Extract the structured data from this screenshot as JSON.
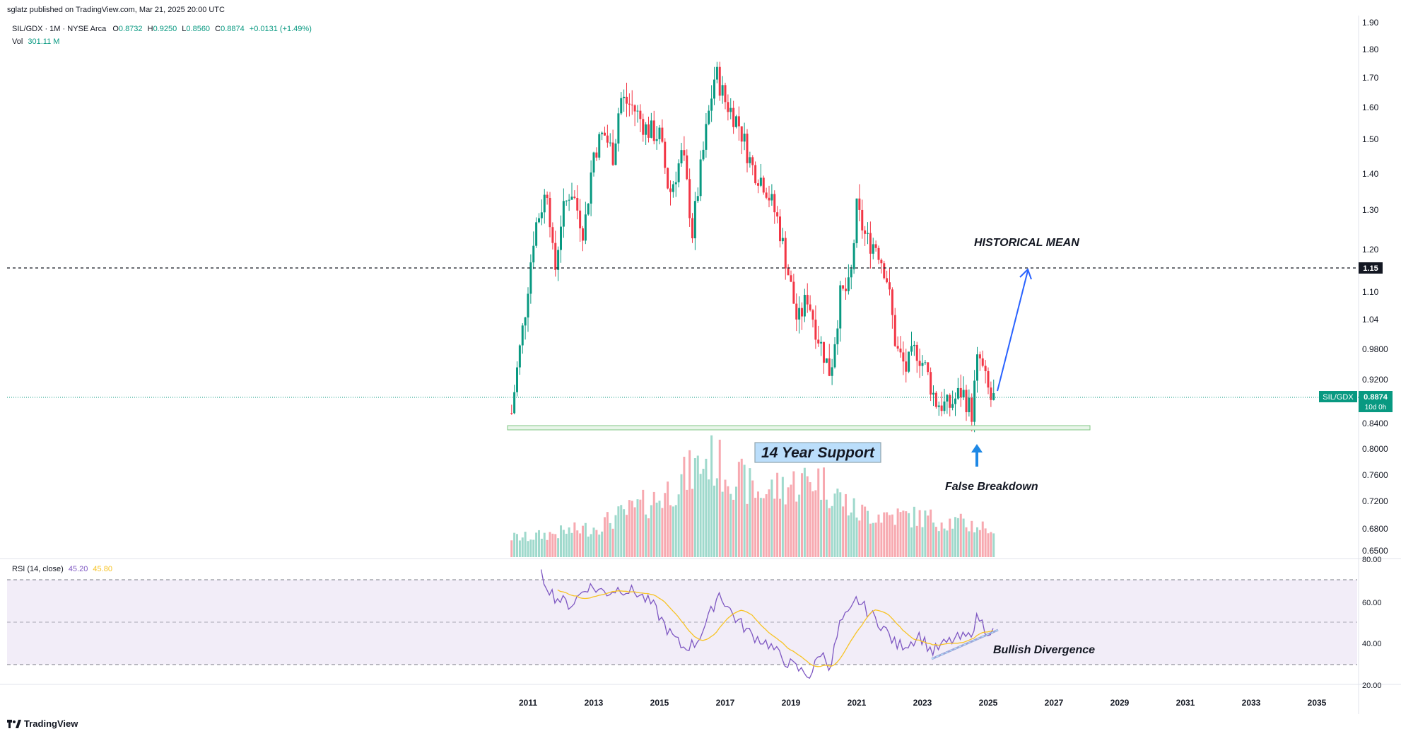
{
  "header": {
    "published": "sglatz published on TradingView.com, Mar 21, 2025 20:00 UTC"
  },
  "legend": {
    "symbol": "SIL/GDX · 1M · NYSE Arca",
    "o_label": "O",
    "o": "0.8732",
    "h_label": "H",
    "h": "0.9250",
    "l_label": "L",
    "l": "0.8560",
    "c_label": "C",
    "c": "0.8874",
    "change": "+0.0131 (+1.49%)",
    "vol_label": "Vol",
    "vol": "301.11 M",
    "rsi_label": "RSI (14, close)",
    "rsi_value": "45.20",
    "rsi_ma": "45.80"
  },
  "price_axis": {
    "ticks": [
      "1.90",
      "1.80",
      "1.70",
      "1.60",
      "1.50",
      "1.40",
      "1.30",
      "1.20",
      "1.10",
      "1.04",
      "0.9800",
      "0.9200",
      "0.8400",
      "0.8000",
      "0.7600",
      "0.7200",
      "0.6800",
      "0.6500"
    ],
    "mean_tag": "1.15",
    "symbol_tag": "SIL/GDX",
    "price_tag": "0.8874",
    "countdown": "10d 0h"
  },
  "rsi_axis": {
    "ticks": [
      "80.00",
      "60.00",
      "40.00",
      "20.00"
    ]
  },
  "time_axis": {
    "ticks": [
      "2011",
      "2013",
      "2015",
      "2017",
      "2019",
      "2021",
      "2023",
      "2025",
      "2027",
      "2029",
      "2031",
      "2033",
      "2035"
    ]
  },
  "annotations": {
    "historical_mean": "HISTORICAL MEAN",
    "support": "14 Year Support",
    "false_breakdown": "False Breakdown",
    "bullish_divergence": "Bullish Divergence"
  },
  "watermark": "TradingView",
  "colors": {
    "up": "#089981",
    "down": "#f23645",
    "rsi": "#7e57c2",
    "rsi_ma": "#f7c325",
    "support": "#a5d6a7",
    "arrow": "#2962ff",
    "rsi_band": "#ede7f6"
  },
  "chart_data": {
    "type": "candlestick",
    "interval": "1M",
    "x_range": [
      2010,
      2036
    ],
    "ylim": [
      0.64,
      1.91
    ],
    "y_scale": "log",
    "historical_mean": 1.15,
    "support_level": 0.835,
    "last_close": 0.8874,
    "series": [
      {
        "name": "Price",
        "points": [
          {
            "t": 2010.5,
            "v": 0.86
          },
          {
            "t": 2010.9,
            "v": 1.05
          },
          {
            "t": 2011.2,
            "v": 1.25
          },
          {
            "t": 2011.6,
            "v": 1.36
          },
          {
            "t": 2011.8,
            "v": 1.13
          },
          {
            "t": 2012.0,
            "v": 1.27
          },
          {
            "t": 2012.3,
            "v": 1.36
          },
          {
            "t": 2012.7,
            "v": 1.24
          },
          {
            "t": 2013.0,
            "v": 1.46
          },
          {
            "t": 2013.3,
            "v": 1.52
          },
          {
            "t": 2013.6,
            "v": 1.45
          },
          {
            "t": 2013.8,
            "v": 1.63
          },
          {
            "t": 2014.2,
            "v": 1.6
          },
          {
            "t": 2014.6,
            "v": 1.53
          },
          {
            "t": 2015.0,
            "v": 1.51
          },
          {
            "t": 2015.3,
            "v": 1.34
          },
          {
            "t": 2015.7,
            "v": 1.46
          },
          {
            "t": 2016.0,
            "v": 1.24
          },
          {
            "t": 2016.3,
            "v": 1.44
          },
          {
            "t": 2016.7,
            "v": 1.72
          },
          {
            "t": 2017.0,
            "v": 1.62
          },
          {
            "t": 2017.4,
            "v": 1.55
          },
          {
            "t": 2017.8,
            "v": 1.42
          },
          {
            "t": 2018.2,
            "v": 1.37
          },
          {
            "t": 2018.6,
            "v": 1.27
          },
          {
            "t": 2018.9,
            "v": 1.15
          },
          {
            "t": 2019.2,
            "v": 1.03
          },
          {
            "t": 2019.5,
            "v": 1.09
          },
          {
            "t": 2019.8,
            "v": 1.01
          },
          {
            "t": 2020.2,
            "v": 0.93
          },
          {
            "t": 2020.5,
            "v": 1.09
          },
          {
            "t": 2020.8,
            "v": 1.11
          },
          {
            "t": 2021.0,
            "v": 1.3
          },
          {
            "t": 2021.3,
            "v": 1.22
          },
          {
            "t": 2021.6,
            "v": 1.21
          },
          {
            "t": 2021.9,
            "v": 1.14
          },
          {
            "t": 2022.2,
            "v": 0.98
          },
          {
            "t": 2022.5,
            "v": 0.94
          },
          {
            "t": 2022.8,
            "v": 0.98
          },
          {
            "t": 2023.1,
            "v": 0.94
          },
          {
            "t": 2023.4,
            "v": 0.88
          },
          {
            "t": 2023.8,
            "v": 0.87
          },
          {
            "t": 2024.2,
            "v": 0.9
          },
          {
            "t": 2024.5,
            "v": 0.86
          },
          {
            "t": 2024.7,
            "v": 0.97
          },
          {
            "t": 2024.9,
            "v": 0.92
          },
          {
            "t": 2025.1,
            "v": 0.88
          },
          {
            "t": 2025.2,
            "v": 0.8874
          }
        ]
      },
      {
        "name": "Projection",
        "points": [
          {
            "t": 2025.3,
            "v": 0.89
          },
          {
            "t": 2026.2,
            "v": 1.15
          }
        ]
      }
    ],
    "volume_profile": [
      {
        "t": 2011,
        "v": 0.2
      },
      {
        "t": 2013,
        "v": 0.3
      },
      {
        "t": 2015,
        "v": 0.6
      },
      {
        "t": 2016.5,
        "v": 1.0
      },
      {
        "t": 2018,
        "v": 0.65
      },
      {
        "t": 2019.8,
        "v": 0.8
      },
      {
        "t": 2021,
        "v": 0.45
      },
      {
        "t": 2023,
        "v": 0.4
      },
      {
        "t": 2025,
        "v": 0.3
      }
    ],
    "rsi": [
      {
        "t": 2011.4,
        "v": 72
      },
      {
        "t": 2011.8,
        "v": 62
      },
      {
        "t": 2012.3,
        "v": 58
      },
      {
        "t": 2012.8,
        "v": 67
      },
      {
        "t": 2013.4,
        "v": 64
      },
      {
        "t": 2013.8,
        "v": 66
      },
      {
        "t": 2014.3,
        "v": 64
      },
      {
        "t": 2014.8,
        "v": 58
      },
      {
        "t": 2015.3,
        "v": 45
      },
      {
        "t": 2015.7,
        "v": 38
      },
      {
        "t": 2016.1,
        "v": 40
      },
      {
        "t": 2016.5,
        "v": 52
      },
      {
        "t": 2016.8,
        "v": 64
      },
      {
        "t": 2017.3,
        "v": 52
      },
      {
        "t": 2017.8,
        "v": 44
      },
      {
        "t": 2018.3,
        "v": 40
      },
      {
        "t": 2018.8,
        "v": 32
      },
      {
        "t": 2019.3,
        "v": 27
      },
      {
        "t": 2019.6,
        "v": 25
      },
      {
        "t": 2019.9,
        "v": 36
      },
      {
        "t": 2020.2,
        "v": 29
      },
      {
        "t": 2020.5,
        "v": 50
      },
      {
        "t": 2020.8,
        "v": 54
      },
      {
        "t": 2021.0,
        "v": 61
      },
      {
        "t": 2021.4,
        "v": 54
      },
      {
        "t": 2021.8,
        "v": 48
      },
      {
        "t": 2022.2,
        "v": 39
      },
      {
        "t": 2022.6,
        "v": 40
      },
      {
        "t": 2022.9,
        "v": 44
      },
      {
        "t": 2023.3,
        "v": 36
      },
      {
        "t": 2023.7,
        "v": 40
      },
      {
        "t": 2024.0,
        "v": 42
      },
      {
        "t": 2024.4,
        "v": 43
      },
      {
        "t": 2024.7,
        "v": 53
      },
      {
        "t": 2024.9,
        "v": 47
      },
      {
        "t": 2025.2,
        "v": 45.2
      }
    ],
    "rsi_bands": [
      70,
      50,
      30
    ],
    "rsi_ylim": [
      14,
      80
    ]
  }
}
